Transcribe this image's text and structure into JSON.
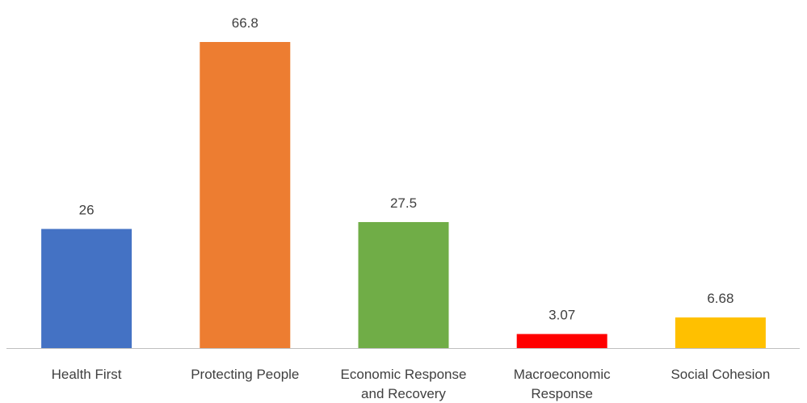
{
  "chart_data": {
    "type": "bar",
    "categories": [
      [
        "Health First"
      ],
      [
        "Protecting People"
      ],
      [
        "Economic Response",
        "and Recovery"
      ],
      [
        "Macroeconomic",
        "Response"
      ],
      [
        "Social Cohesion"
      ]
    ],
    "values": [
      26,
      66.8,
      27.5,
      3.07,
      6.68
    ],
    "data_labels": [
      "26",
      "66.8",
      "27.5",
      "3.07",
      "6.68"
    ],
    "colors": [
      "#4472c4",
      "#ed7d31",
      "#70ad47",
      "#ff0000",
      "#ffc000"
    ],
    "title": "",
    "xlabel": "",
    "ylabel": "",
    "ylim": [
      0,
      66.8
    ],
    "grid": false,
    "legend": "none"
  }
}
